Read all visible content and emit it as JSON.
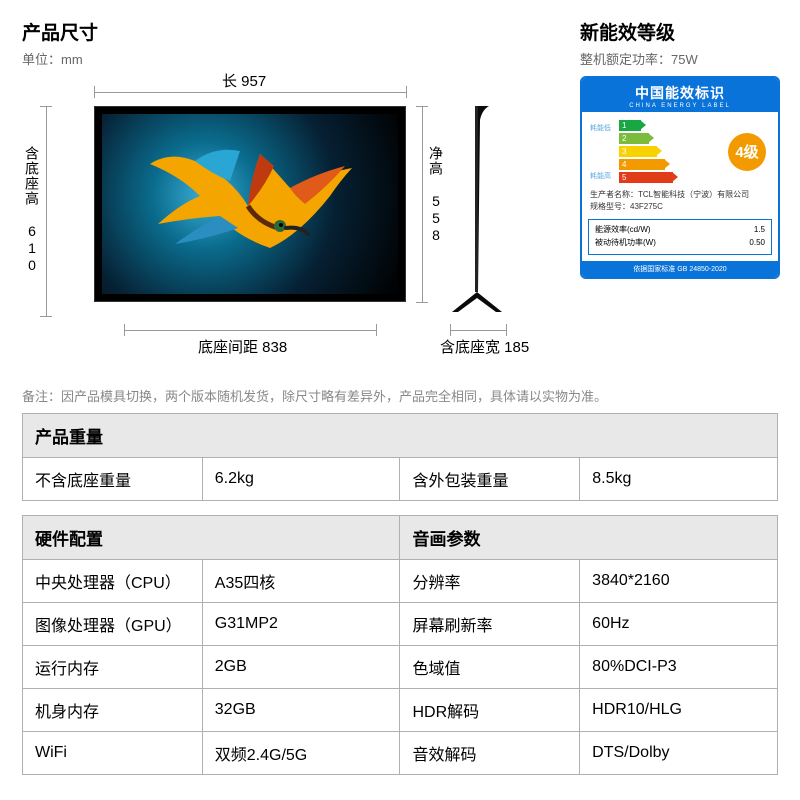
{
  "dimensions": {
    "title": "产品尺寸",
    "unit_label": "单位：mm",
    "width_label": "长 957",
    "net_height_label": "净高 558",
    "full_height_label": "含底座高 610",
    "stand_span_label": "底座间距 838",
    "base_width_label": "含底座宽 185"
  },
  "energy": {
    "title": "新能效等级",
    "power_label": "整机额定功率：75W",
    "card_title_cn": "中国能效标识",
    "card_title_en": "CHINA ENERGY LABEL",
    "side_low": "耗能低",
    "side_high": "耗能高",
    "grade": "4级",
    "maker_label": "生产者名称：",
    "maker_value": "TCL智能科技（宁波）有限公司",
    "model_label": "规格型号：",
    "model_value": "43F275C",
    "eff_label": "能源效率(cd/W)",
    "eff_value": "1.5",
    "standby_label": "被动待机功率(W)",
    "standby_value": "0.50",
    "footer": "依据国家标准 GB 24850-2020"
  },
  "note": "备注：因产品模具切换，两个版本随机发货，除尺寸略有差异外，产品完全相同，具体请以实物为准。",
  "weight": {
    "header": "产品重量",
    "no_stand_label": "不含底座重量",
    "no_stand_value": "6.2kg",
    "packed_label": "含外包装重量",
    "packed_value": "8.5kg"
  },
  "hw_header": "硬件配置",
  "av_header": "音画参数",
  "specs": [
    {
      "l1": "中央处理器（CPU）",
      "v1": "A35四核",
      "l2": "分辨率",
      "v2": "3840*2160"
    },
    {
      "l1": "图像处理器（GPU）",
      "v1": "G31MP2",
      "l2": "屏幕刷新率",
      "v2": "60Hz"
    },
    {
      "l1": "运行内存",
      "v1": "2GB",
      "l2": "色域值",
      "v2": "80%DCI-P3"
    },
    {
      "l1": "机身内存",
      "v1": "32GB",
      "l2": "HDR解码",
      "v2": "HDR10/HLG"
    },
    {
      "l1": "WiFi",
      "v1": "双频2.4G/5G",
      "l2": "音效解码",
      "v2": "DTS/Dolby"
    }
  ]
}
